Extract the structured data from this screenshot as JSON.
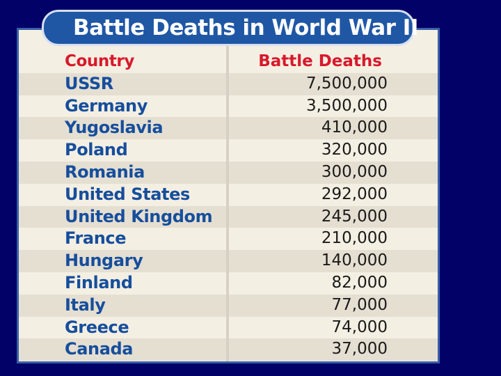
{
  "title": "Battle Deaths in World War II",
  "chart_data": {
    "type": "table",
    "title": "Battle Deaths in World War II",
    "columns": [
      "Country",
      "Battle Deaths"
    ],
    "categories": [
      "USSR",
      "Germany",
      "Yugoslavia",
      "Poland",
      "Romania",
      "United States",
      "United Kingdom",
      "France",
      "Hungary",
      "Finland",
      "Italy",
      "Greece",
      "Canada"
    ],
    "values": [
      7500000,
      3500000,
      410000,
      320000,
      300000,
      292000,
      245000,
      210000,
      140000,
      82000,
      77000,
      74000,
      37000
    ],
    "rows": [
      {
        "country": "USSR",
        "deaths": "7,500,000"
      },
      {
        "country": "Germany",
        "deaths": "3,500,000"
      },
      {
        "country": "Yugoslavia",
        "deaths": "410,000"
      },
      {
        "country": "Poland",
        "deaths": "320,000"
      },
      {
        "country": "Romania",
        "deaths": "300,000"
      },
      {
        "country": "United States",
        "deaths": "292,000"
      },
      {
        "country": "United Kingdom",
        "deaths": "245,000"
      },
      {
        "country": "France",
        "deaths": "210,000"
      },
      {
        "country": "Hungary",
        "deaths": "140,000"
      },
      {
        "country": "Finland",
        "deaths": "82,000"
      },
      {
        "country": "Italy",
        "deaths": "77,000"
      },
      {
        "country": "Greece",
        "deaths": "74,000"
      },
      {
        "country": "Canada",
        "deaths": "37,000"
      }
    ]
  },
  "colors": {
    "background": "#010167",
    "title_bar": "#1f57a5",
    "header_text": "#d8192b",
    "country_text": "#164e9c",
    "row_shade": "#e5dfd2",
    "panel": "#f4efe3"
  }
}
